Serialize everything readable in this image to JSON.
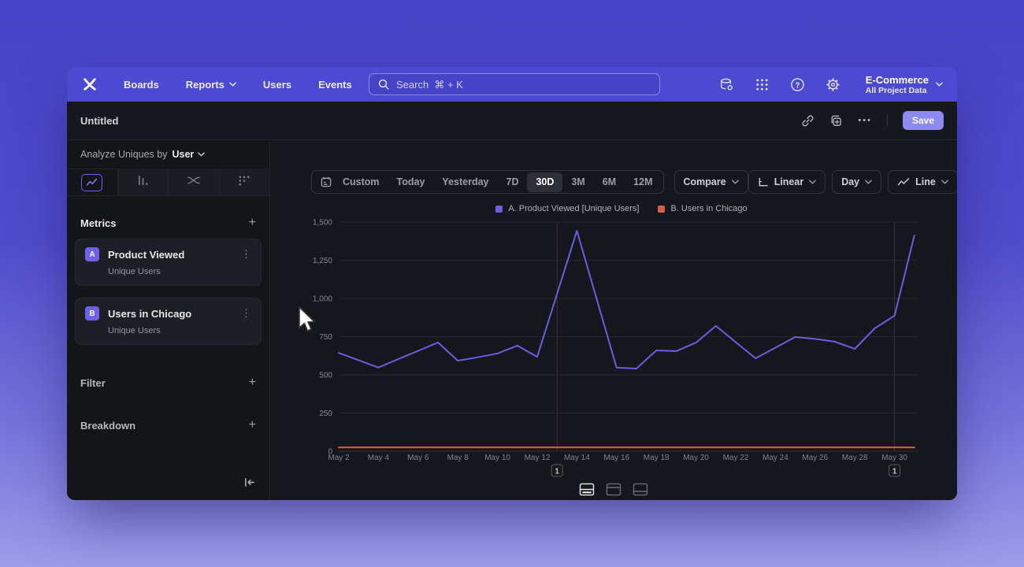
{
  "nav": {
    "menu": [
      {
        "label": "Boards",
        "dropdown": false
      },
      {
        "label": "Reports",
        "dropdown": true
      },
      {
        "label": "Users",
        "dropdown": false
      },
      {
        "label": "Events",
        "dropdown": false
      }
    ],
    "search_placeholder": "Search  ⌘ + K",
    "project_name": "E-Commerce",
    "project_scope": "All Project Data"
  },
  "titlebar": {
    "title": "Untitled",
    "save_label": "Save"
  },
  "sidebar": {
    "analyze_label": "Analyze Uniques by",
    "analyze_value": "User",
    "metrics_header": "Metrics",
    "metrics": [
      {
        "badge": "A",
        "name": "Product Viewed",
        "subtitle": "Unique Users"
      },
      {
        "badge": "B",
        "name": "Users in Chicago",
        "subtitle": "Unique Users"
      }
    ],
    "filter_header": "Filter",
    "breakdown_header": "Breakdown"
  },
  "toolbar": {
    "date_ranges": [
      "Custom",
      "Today",
      "Yesterday",
      "7D",
      "30D",
      "3M",
      "6M",
      "12M"
    ],
    "active_range": "30D",
    "compare_label": "Compare",
    "scale_label": "Linear",
    "interval_label": "Day",
    "chart_type_label": "Line"
  },
  "chart_data": {
    "type": "line",
    "x": [
      "May 2",
      "May 3",
      "May 4",
      "May 5",
      "May 6",
      "May 7",
      "May 8",
      "May 9",
      "May 10",
      "May 11",
      "May 12",
      "May 13",
      "May 14",
      "May 15",
      "May 16",
      "May 17",
      "May 18",
      "May 19",
      "May 20",
      "May 21",
      "May 22",
      "May 23",
      "May 24",
      "May 25",
      "May 26",
      "May 27",
      "May 28",
      "May 29",
      "May 30",
      "May 31"
    ],
    "x_tick_labels": [
      "May 2",
      "May 4",
      "May 6",
      "May 8",
      "May 10",
      "May 12",
      "May 14",
      "May 16",
      "May 18",
      "May 20",
      "May 22",
      "May 24",
      "May 26",
      "May 28",
      "May 30"
    ],
    "ylim": [
      0,
      1500
    ],
    "yticks": [
      0,
      250,
      500,
      750,
      1000,
      1250,
      1500
    ],
    "ytick_labels": [
      "0",
      "250",
      "500",
      "750",
      "1,000",
      "1,250",
      "1,500"
    ],
    "grid": true,
    "legend_position": "top",
    "series": [
      {
        "name": "A. Product Viewed [Unique Users]",
        "color": "#695ce5",
        "values": [
          644,
          596,
          548,
          603,
          657,
          712,
          593,
          615,
          640,
          691,
          618,
          1030,
          1443,
          995,
          547,
          541,
          660,
          655,
          711,
          820,
          714,
          608,
          678,
          748,
          735,
          717,
          670,
          804,
          887,
          1412
        ]
      },
      {
        "name": "B. Users in Chicago",
        "color": "#d65f49",
        "values": [
          25,
          25,
          25,
          25,
          25,
          25,
          25,
          25,
          25,
          25,
          25,
          25,
          25,
          25,
          25,
          25,
          25,
          25,
          25,
          25,
          25,
          25,
          25,
          25,
          25,
          25,
          25,
          25,
          25,
          25
        ]
      }
    ],
    "annotations": [
      {
        "label": "1",
        "x_label": "May 13"
      },
      {
        "label": "1",
        "x_label": "May 30"
      }
    ]
  },
  "footer": {
    "layout_options": [
      "chart-and-table",
      "chart-focus",
      "table-focus"
    ],
    "active_layout": 0
  },
  "colors": {
    "nav_purple": "#4c49d2",
    "accent_purple": "#6d60ea",
    "save_button": "#8c8af0",
    "series_a": "#695ce5",
    "series_b": "#d65f49"
  }
}
